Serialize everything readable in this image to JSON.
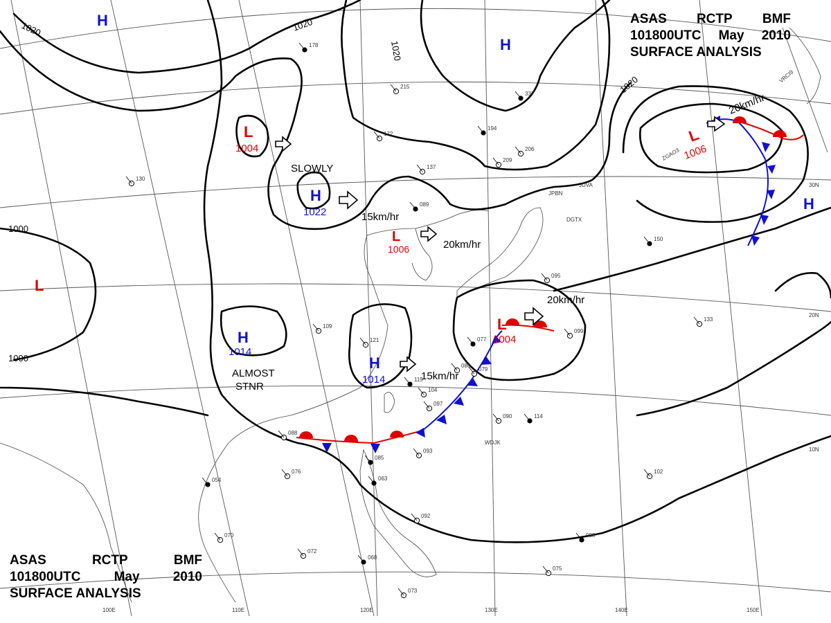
{
  "header": {
    "line1": [
      "ASAS",
      "RCTP",
      "BMF"
    ],
    "line2": [
      "101800UTC",
      "May",
      "2010"
    ],
    "line3": "SURFACE ANALYSIS"
  },
  "colors": {
    "high": "#1010d0",
    "low": "#e00000",
    "isobar": "#000000",
    "grid": "#555555",
    "coast": "#444444",
    "warm_front": "#e00000",
    "cold_front": "#1010d0"
  },
  "longitude_labels": [
    "100E",
    "110E",
    "120E",
    "130E",
    "140E",
    "150E"
  ],
  "latitude_labels": [
    "30N",
    "20N",
    "10N"
  ],
  "isobar_labels": [
    "1020",
    "1020",
    "1020",
    "1020",
    "1000",
    "1000"
  ],
  "pressure_centers": [
    {
      "type": "H",
      "value": ""
    },
    {
      "type": "H",
      "value": ""
    },
    {
      "type": "L",
      "value": "1004"
    },
    {
      "type": "H",
      "value": "1022"
    },
    {
      "type": "L",
      "value": "1006"
    },
    {
      "type": "L",
      "value": ""
    },
    {
      "type": "H",
      "value": "1014"
    },
    {
      "type": "H",
      "value": "1014"
    },
    {
      "type": "L",
      "value": "1004"
    },
    {
      "type": "L",
      "value": "1006"
    },
    {
      "type": "H",
      "value": ""
    }
  ],
  "movement_labels": [
    "SLOWLY",
    "15km/hr",
    "20km/hr",
    "15km/hr",
    "20km/hr",
    "20km/hr"
  ],
  "stationary_note": [
    "ALMOST",
    "STNR"
  ],
  "station_ids": [
    "JPBN",
    "JDVA",
    "DGTX",
    "WDJK",
    "ZGAO3",
    "VRCI9"
  ],
  "station_values": [
    "178",
    "130",
    "215",
    "337",
    "206",
    "172",
    "194",
    "209",
    "137",
    "089",
    "109",
    "121",
    "115",
    "104",
    "097",
    "114",
    "090",
    "088",
    "054",
    "070",
    "072",
    "068",
    "073",
    "075",
    "088",
    "099",
    "133",
    "150",
    "102",
    "095",
    "077",
    "086",
    "079",
    "063",
    "092",
    "093",
    "085",
    "076"
  ]
}
